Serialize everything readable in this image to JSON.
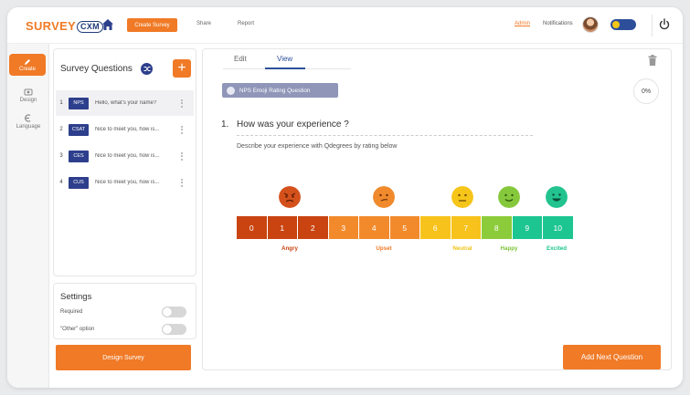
{
  "header": {
    "logo_part1": "SURVEY",
    "logo_part2": "CXM",
    "nav": {
      "create": "Create Survey",
      "share": "Share",
      "report": "Report"
    },
    "admin": "Admin",
    "notifications": "Notifications"
  },
  "rail": {
    "create": "Create",
    "design": "Design",
    "language": "Language"
  },
  "questions_panel": {
    "title": "Survey Questions",
    "add_label": "+",
    "items": [
      {
        "num": "1",
        "tag": "NPS",
        "text": "Hello, what's your name?"
      },
      {
        "num": "2",
        "tag": "CSAT",
        "text": "Nice to meet you, how is..."
      },
      {
        "num": "3",
        "tag": "CES",
        "text": "Nice to meet you, how is..."
      },
      {
        "num": "4",
        "tag": "CUS",
        "text": "Nice to meet you, how is..."
      }
    ]
  },
  "settings": {
    "title": "Settings",
    "required": "Required",
    "other_option": "\"Other\" option"
  },
  "design_button": "Design Survey",
  "main": {
    "tabs": {
      "edit": "Edit",
      "view": "View"
    },
    "chip": "NPS Emoji Rating Question",
    "progress": "0%",
    "question_number": "1.",
    "question_title": "How was your experience ?",
    "description": "Describe your experience with Qdegrees by rating below",
    "scale": [
      "0",
      "1",
      "2",
      "3",
      "4",
      "5",
      "6",
      "7",
      "8",
      "9",
      "10"
    ],
    "scale_colors": [
      "#c94410",
      "#c94410",
      "#c94410",
      "#f28a2c",
      "#f28a2c",
      "#f28a2c",
      "#f7c21b",
      "#f7c21b",
      "#8ccc3a",
      "#1dc590",
      "#1dc590"
    ],
    "sentiments": [
      {
        "label": "Angry",
        "color": "#c94410"
      },
      {
        "label": "Upset",
        "color": "#f07a26"
      },
      {
        "label": "Neutral",
        "color": "#f0c419"
      },
      {
        "label": "Happy",
        "color": "#7dc43a"
      },
      {
        "label": "Excited",
        "color": "#1dc590"
      }
    ],
    "next_button": "Add Next Question"
  }
}
